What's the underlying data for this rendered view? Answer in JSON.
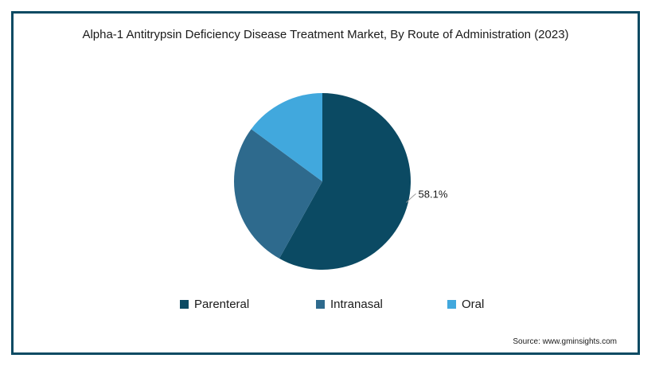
{
  "chart_data": {
    "type": "pie",
    "title": "Alpha-1 Antitrypsin Deficiency Disease Treatment Market, By Route of Administration (2023)",
    "categories": [
      "Parenteral",
      "Intranasal",
      "Oral"
    ],
    "values": [
      58.1,
      27.0,
      14.9
    ],
    "labels": [
      "58.1%",
      "",
      ""
    ],
    "colors": [
      "#0b4a63",
      "#2e6a8d",
      "#41a8dd"
    ],
    "legend": "bottom",
    "start_angle_deg": 0,
    "direction": "clockwise"
  },
  "source": "Source: www.gminsights.com"
}
